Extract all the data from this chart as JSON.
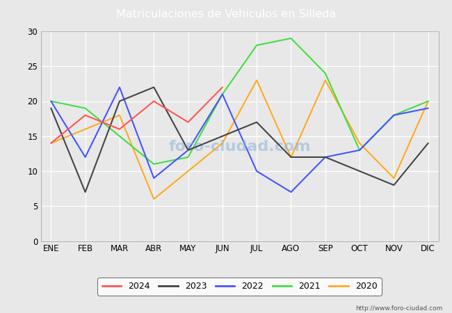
{
  "title": "Matriculaciones de Vehiculos en Silleda",
  "months": [
    "ENE",
    "FEB",
    "MAR",
    "ABR",
    "MAY",
    "JUN",
    "JUL",
    "AGO",
    "SEP",
    "OCT",
    "NOV",
    "DIC"
  ],
  "series": {
    "2024": {
      "values": [
        14,
        18,
        16,
        20,
        17,
        22,
        null,
        null,
        null,
        null,
        null,
        null
      ],
      "color": "#ff5555",
      "zorder": 5
    },
    "2023": {
      "values": [
        19,
        7,
        20,
        22,
        13,
        15,
        17,
        12,
        12,
        10,
        8,
        14
      ],
      "color": "#444444",
      "zorder": 4
    },
    "2022": {
      "values": [
        20,
        12,
        22,
        9,
        13,
        21,
        10,
        7,
        12,
        13,
        18,
        19
      ],
      "color": "#4455ff",
      "zorder": 3
    },
    "2021": {
      "values": [
        20,
        19,
        15,
        11,
        12,
        21,
        28,
        29,
        24,
        13,
        18,
        20
      ],
      "color": "#44dd44",
      "zorder": 2
    },
    "2020": {
      "values": [
        14,
        16,
        18,
        6,
        10,
        14,
        23,
        12,
        23,
        14,
        9,
        20
      ],
      "color": "#ffaa22",
      "zorder": 1
    }
  },
  "ylim": [
    0,
    30
  ],
  "yticks": [
    0,
    5,
    10,
    15,
    20,
    25,
    30
  ],
  "bg_color": "#e8e8e8",
  "plot_bg": "#e8e8e8",
  "title_bg": "#4472c4",
  "title_color": "white",
  "legend_labels": [
    "2024",
    "2023",
    "2022",
    "2021",
    "2020"
  ],
  "legend_colors": [
    "#ff5555",
    "#444444",
    "#4455ff",
    "#44dd44",
    "#ffaa22"
  ],
  "url": "http://www.foro-ciudad.com"
}
